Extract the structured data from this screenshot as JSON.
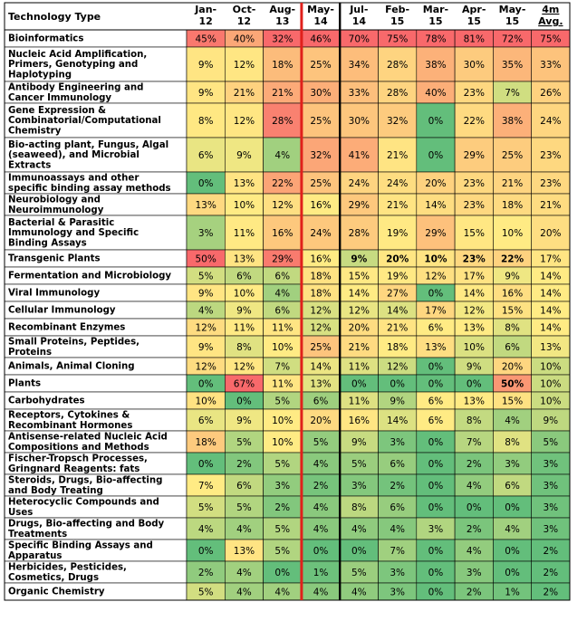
{
  "chart_data": {
    "type": "heatmap",
    "columns": [
      "Jan-12",
      "Oct-12",
      "Aug-13",
      "May-14",
      "Jul-14",
      "Feb-15",
      "Mar-15",
      "Apr-15",
      "May-15",
      "4m Avg."
    ],
    "column_lines": [
      [
        "Jan-",
        "12"
      ],
      [
        "Oct-",
        "12"
      ],
      [
        "Aug-",
        "13"
      ],
      [
        "May-",
        "14"
      ],
      [
        "Jul-",
        "14"
      ],
      [
        "Feb-",
        "15"
      ],
      [
        "Mar-",
        "15"
      ],
      [
        "Apr-",
        "15"
      ],
      [
        "May-",
        "15"
      ],
      [
        "4m",
        "Avg."
      ]
    ],
    "row_header": "Technology Type",
    "color_scale": {
      "low": "#63be7b",
      "mid": "#ffeb84",
      "high": "#f8696b"
    },
    "separators": {
      "red_line_after_column": "May-14",
      "black_line_after_column": "May-14"
    },
    "rows": [
      {
        "lines": [
          "Bioinformatics"
        ],
        "values": [
          45,
          40,
          32,
          46,
          70,
          75,
          78,
          81,
          72,
          75
        ],
        "bold": []
      },
      {
        "lines": [
          "Nucleic Acid Amplification,",
          "Primers, Genotyping and",
          "Haplotyping"
        ],
        "values": [
          9,
          12,
          18,
          25,
          34,
          28,
          38,
          30,
          35,
          33
        ],
        "bold": []
      },
      {
        "lines": [
          "Antibody Engineering and",
          "Cancer Immunology"
        ],
        "values": [
          9,
          21,
          21,
          30,
          33,
          28,
          40,
          23,
          7,
          26
        ],
        "bold": []
      },
      {
        "lines": [
          "Gene Expression &",
          "Combinatorial/Computational",
          "Chemistry"
        ],
        "values": [
          8,
          12,
          28,
          25,
          30,
          32,
          0,
          22,
          38,
          24
        ],
        "bold": []
      },
      {
        "lines": [
          "Bio-acting plant, Fungus, Algal",
          "(seaweed), and Microbial",
          "Extracts"
        ],
        "values": [
          6,
          9,
          4,
          32,
          41,
          21,
          0,
          29,
          25,
          23
        ],
        "bold": []
      },
      {
        "lines": [
          "Immunoassays and other",
          "specific binding assay methods"
        ],
        "values": [
          0,
          13,
          22,
          25,
          24,
          24,
          20,
          23,
          21,
          23
        ],
        "bold": []
      },
      {
        "lines": [
          "Neurobiology and",
          "Neuroimmunology"
        ],
        "values": [
          13,
          10,
          12,
          16,
          29,
          21,
          14,
          23,
          18,
          21
        ],
        "bold": []
      },
      {
        "lines": [
          "Bacterial & Parasitic",
          "Immunology and Specific",
          "Binding Assays"
        ],
        "values": [
          3,
          11,
          16,
          24,
          28,
          19,
          29,
          15,
          10,
          20
        ],
        "bold": []
      },
      {
        "lines": [
          "Transgenic Plants"
        ],
        "values": [
          50,
          13,
          29,
          16,
          9,
          20,
          10,
          23,
          22,
          17
        ],
        "bold": [
          4,
          5,
          6,
          7,
          8
        ]
      },
      {
        "lines": [
          "Fermentation and Microbiology"
        ],
        "values": [
          5,
          6,
          6,
          18,
          15,
          19,
          12,
          17,
          9,
          14
        ],
        "bold": []
      },
      {
        "lines": [
          "Viral Immunology"
        ],
        "values": [
          9,
          10,
          4,
          18,
          14,
          27,
          0,
          14,
          16,
          14
        ],
        "bold": []
      },
      {
        "lines": [
          "Cellular Immunology"
        ],
        "values": [
          4,
          9,
          6,
          12,
          12,
          14,
          17,
          12,
          15,
          14
        ],
        "bold": []
      },
      {
        "lines": [
          "Recombinant Enzymes"
        ],
        "values": [
          12,
          11,
          11,
          12,
          20,
          21,
          6,
          13,
          8,
          14
        ],
        "bold": []
      },
      {
        "lines": [
          "Small Proteins, Peptides,",
          "Proteins"
        ],
        "values": [
          9,
          8,
          10,
          25,
          21,
          18,
          13,
          10,
          6,
          13
        ],
        "bold": []
      },
      {
        "lines": [
          "Animals, Animal Cloning"
        ],
        "values": [
          12,
          12,
          7,
          14,
          11,
          12,
          0,
          9,
          20,
          10
        ],
        "bold": []
      },
      {
        "lines": [
          "Plants"
        ],
        "values": [
          0,
          67,
          11,
          13,
          0,
          0,
          0,
          0,
          50,
          10
        ],
        "bold": [
          8
        ]
      },
      {
        "lines": [
          "Carbohydrates"
        ],
        "values": [
          10,
          0,
          5,
          6,
          11,
          9,
          6,
          13,
          15,
          10
        ],
        "bold": []
      },
      {
        "lines": [
          "Receptors, Cytokines &",
          "Recombinant Hormones"
        ],
        "values": [
          6,
          9,
          10,
          20,
          16,
          14,
          6,
          8,
          4,
          9
        ],
        "bold": []
      },
      {
        "lines": [
          "Antisense-related Nucleic Acid",
          "Compositions and Methods"
        ],
        "values": [
          18,
          5,
          10,
          5,
          9,
          3,
          0,
          7,
          8,
          5
        ],
        "bold": []
      },
      {
        "lines": [
          "Fischer-Tropsch Processes,",
          "Gringnard Reagents: fats"
        ],
        "values": [
          0,
          2,
          5,
          4,
          5,
          6,
          0,
          2,
          3,
          3
        ],
        "bold": []
      },
      {
        "lines": [
          "Steroids, Drugs, Bio-affecting",
          "and Body Treating"
        ],
        "values": [
          7,
          6,
          3,
          2,
          3,
          2,
          0,
          4,
          6,
          3
        ],
        "bold": []
      },
      {
        "lines": [
          "Heterocyclic Compounds and",
          "Uses"
        ],
        "values": [
          5,
          5,
          2,
          4,
          8,
          6,
          0,
          0,
          0,
          3
        ],
        "bold": []
      },
      {
        "lines": [
          "Drugs, Bio-affecting and Body",
          "Treatments"
        ],
        "values": [
          4,
          4,
          5,
          4,
          4,
          4,
          3,
          2,
          4,
          3
        ],
        "bold": []
      },
      {
        "lines": [
          "Specific Binding Assays and",
          "Apparatus"
        ],
        "values": [
          0,
          13,
          5,
          0,
          0,
          7,
          0,
          4,
          0,
          2
        ],
        "bold": []
      },
      {
        "lines": [
          "Herbicides, Pesticides,",
          "Cosmetics, Drugs"
        ],
        "values": [
          2,
          4,
          0,
          1,
          5,
          3,
          0,
          3,
          0,
          2
        ],
        "bold": []
      },
      {
        "lines": [
          "Organic Chemistry"
        ],
        "values": [
          5,
          4,
          4,
          4,
          4,
          3,
          0,
          2,
          1,
          2
        ],
        "bold": []
      }
    ]
  }
}
